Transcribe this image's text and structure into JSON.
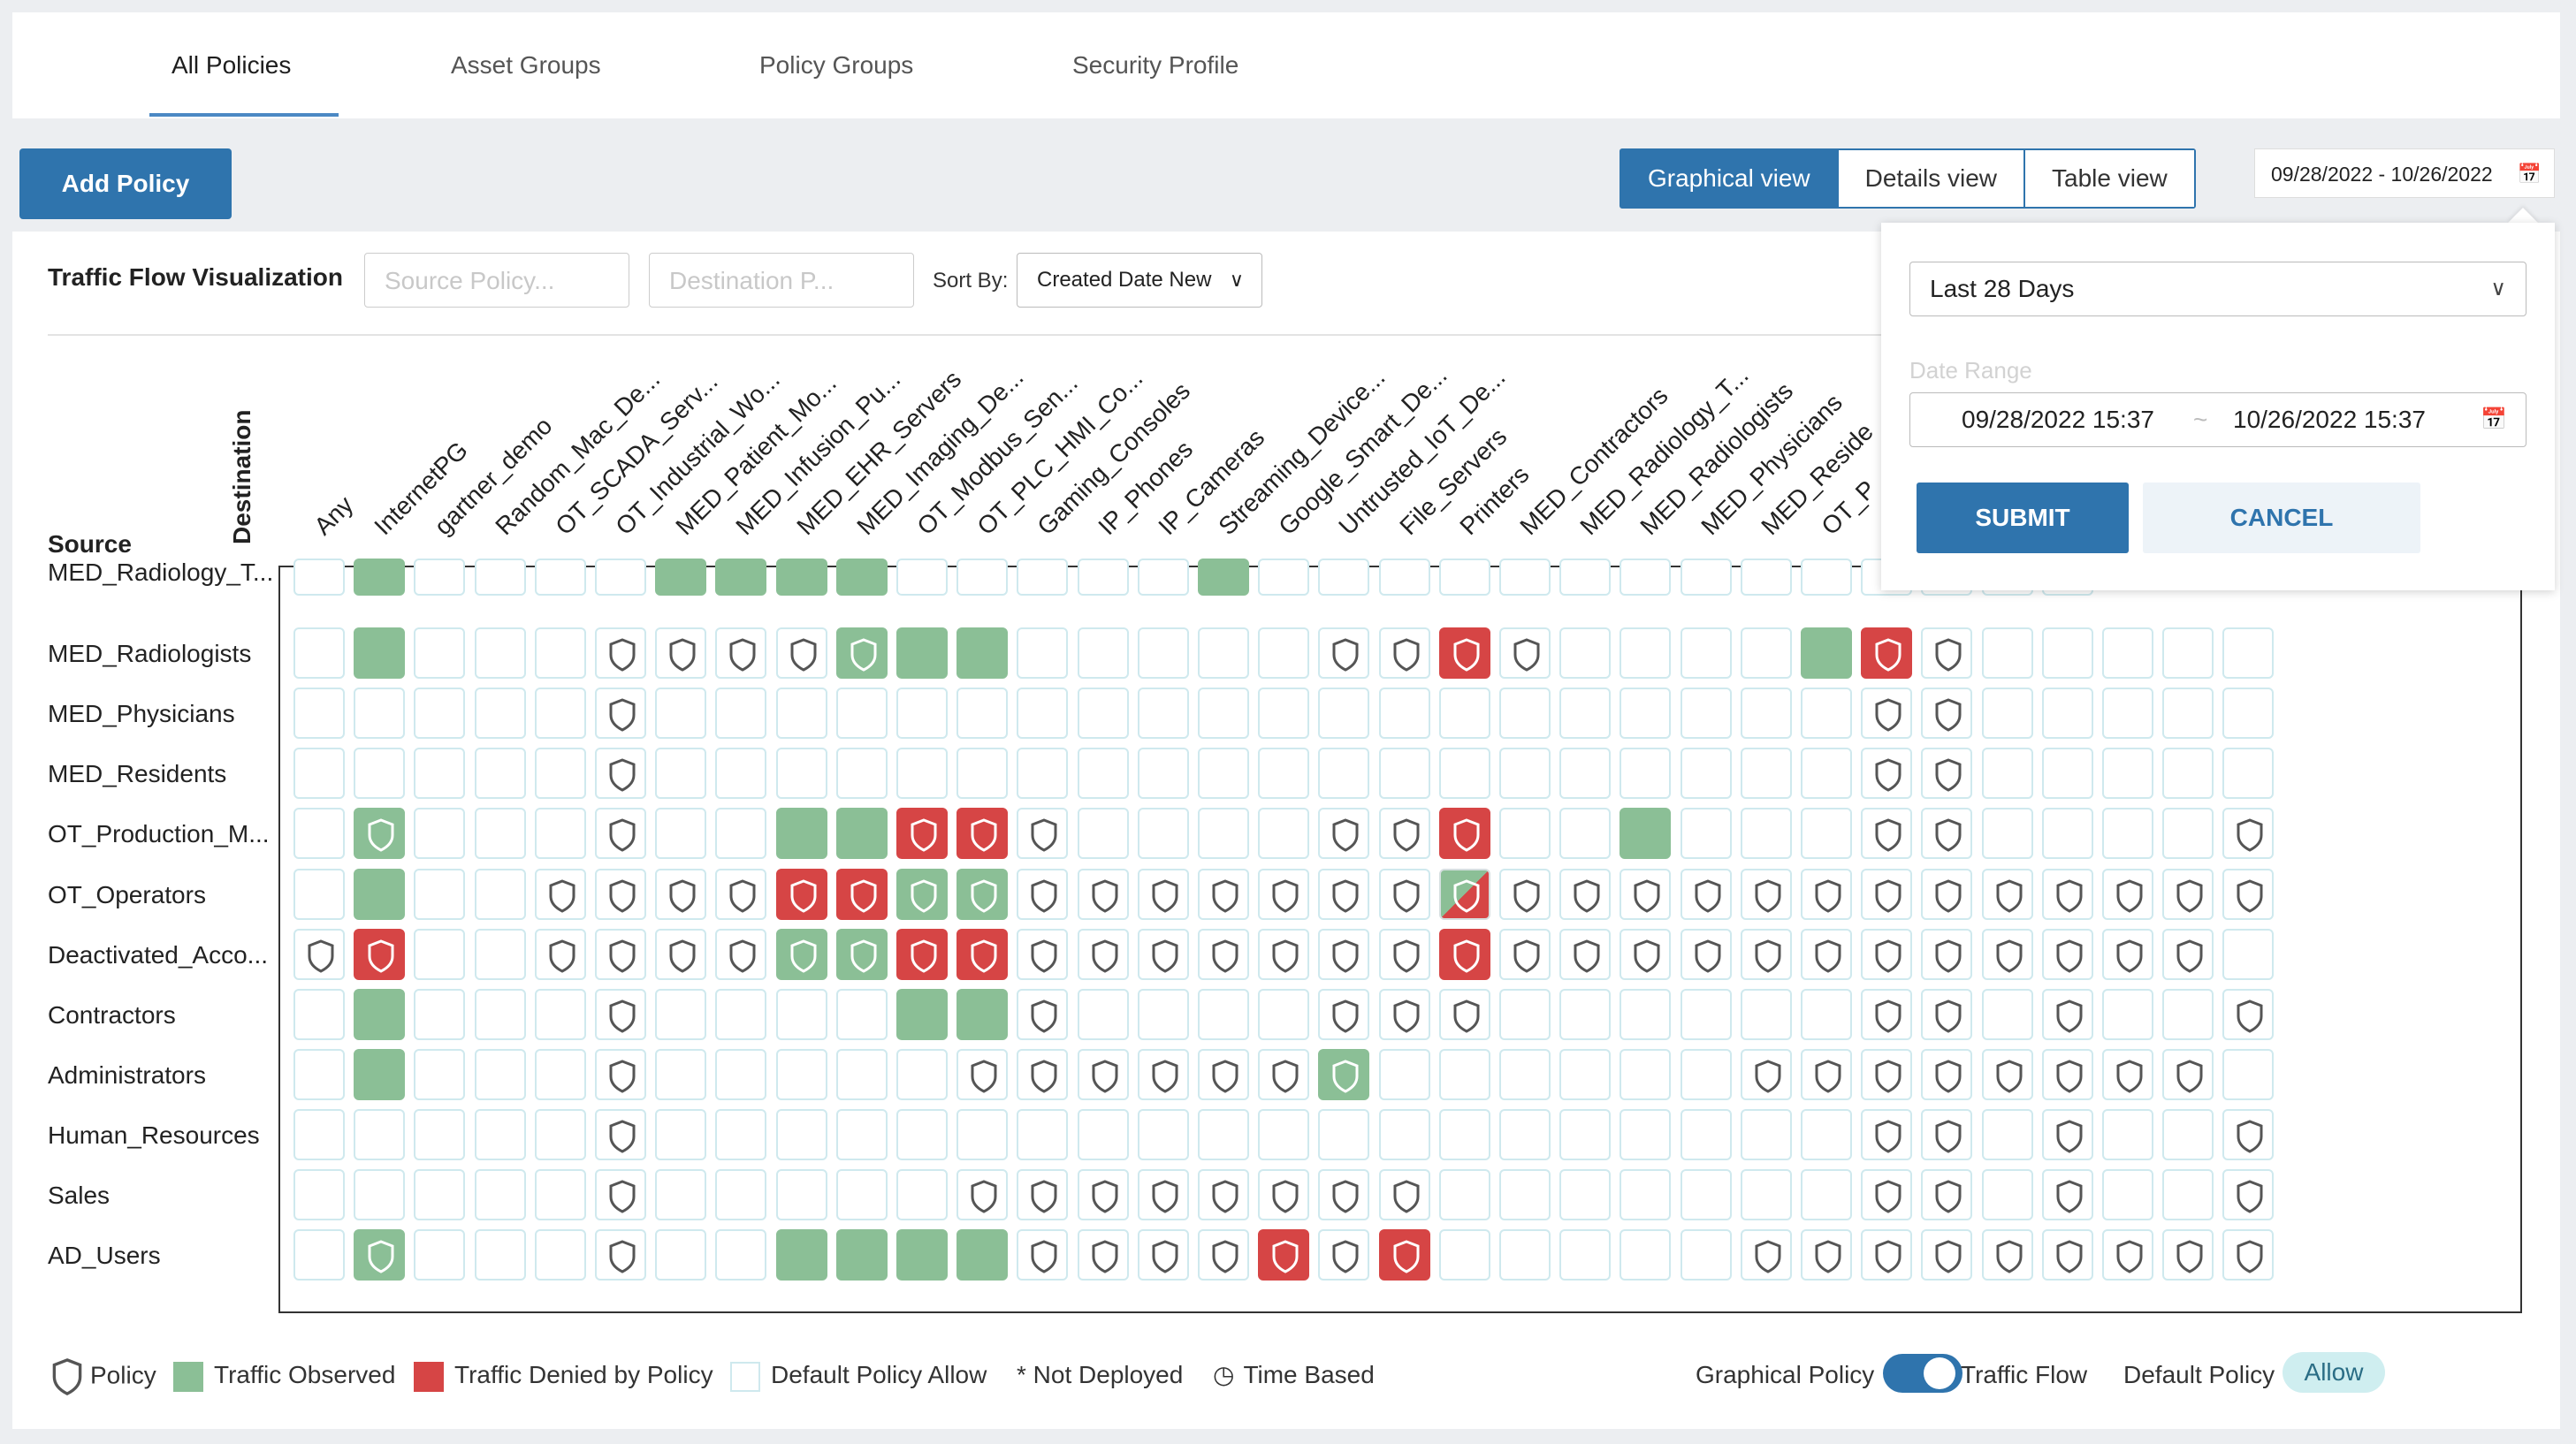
{
  "top_tabs": [
    {
      "label": "All Policies",
      "active": true
    },
    {
      "label": "Asset Groups",
      "active": false
    },
    {
      "label": "Policy Groups",
      "active": false
    },
    {
      "label": "Security Profile",
      "active": false
    }
  ],
  "toolbar": {
    "add_policy_label": "Add Policy",
    "views": [
      {
        "label": "Graphical view",
        "active": true
      },
      {
        "label": "Details view",
        "active": false
      },
      {
        "label": "Table view",
        "active": false
      }
    ],
    "date_range_display": "09/28/2022 - 10/26/2022"
  },
  "panel": {
    "title": "Traffic Flow Visualization",
    "source_policy_placeholder": "Source Policy...",
    "destination_policy_placeholder": "Destination P...",
    "sort_by_label": "Sort By:",
    "sort_by_value": "Created Date New",
    "source_axis_label": "Source",
    "destination_axis_label": "Destination"
  },
  "date_dropdown": {
    "preset": "Last 28 Days",
    "range_label": "Date Range",
    "start": "09/28/2022 15:37",
    "separator": "~",
    "end": "10/26/2022 15:37",
    "submit_label": "SUBMIT",
    "cancel_label": "CANCEL"
  },
  "colors": {
    "accent": "#2f74ad",
    "observed": "#8bbf96",
    "denied": "#d64545",
    "cell_border": "#cfe9ee"
  },
  "matrix": {
    "destinations": [
      "Any",
      "InternetPG",
      "gartner_demo",
      "Random_Mac_De...",
      "OT_SCADA_Serv...",
      "OT_Industrial_Wo...",
      "MED_Patient_Mo...",
      "MED_Infusion_Pu...",
      "MED_EHR_Servers",
      "MED_Imaging_De...",
      "OT_Modbus_Sen...",
      "OT_PLC_HMI_Co...",
      "Gaming_Consoles",
      "IP_Phones",
      "IP_Cameras",
      "Streaming_Device...",
      "Google_Smart_De...",
      "Untrusted_IoT_De...",
      "File_Servers",
      "Printers",
      "MED_Contractors",
      "MED_Radiology_T...",
      "MED_Radiologists",
      "MED_Physicians",
      "MED_Reside",
      "OT_P",
      "",
      "",
      "",
      "",
      "",
      "",
      ""
    ],
    "sources": [
      "MED_Radiology_T...",
      "MED_Radiologists",
      "MED_Physicians",
      "MED_Residents",
      "OT_Production_M...",
      "OT_Operators",
      "Deactivated_Acco...",
      "Contractors",
      "Administrators",
      "Human_Resources",
      "Sales",
      "AD_Users"
    ],
    "rows": [
      "-g----gggg-----g----------------",
      "-g---ppppGgg-----ppDp----gDp-----",
      "-----p--------------------pp-----",
      "-----p--------------------pp-----",
      "-G---p--ggDDp----ppD--g---pp----p",
      "-g--pppp DDGGpppppppHppppppppppppp",
      "pD--pppp GGDDpppppppDpppppppppppp",
      "-g---p----ggp----ppp------pp-p--p",
      "-g---p-----ppppppG------pppppppp",
      "-----p--------------------pp-p--p",
      "-----p-----pppppppp-------pp-p--p",
      "-G---p--ggggppppDpD-----ppppppppp"
    ]
  },
  "legend": {
    "policy": "Policy",
    "observed": "Traffic Observed",
    "denied": "Traffic Denied by Policy",
    "default_allow": "Default Policy Allow",
    "not_deployed": "* Not Deployed",
    "time_based": "Time Based",
    "graphical_policy": "Graphical Policy",
    "traffic_flow": "Traffic Flow",
    "default_policy": "Default Policy",
    "default_policy_value": "Allow"
  }
}
